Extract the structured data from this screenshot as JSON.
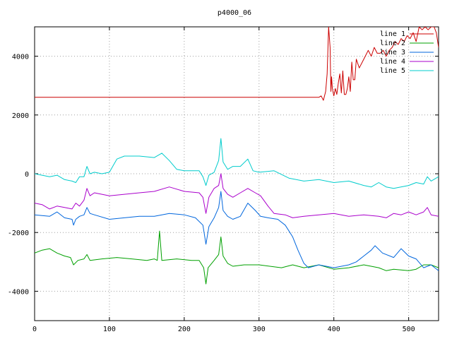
{
  "chart_data": {
    "type": "line",
    "title": "p4000_06",
    "xlabel": "",
    "ylabel": "",
    "xlim": [
      0,
      540
    ],
    "ylim": [
      -5000,
      5000
    ],
    "x_ticks": [
      0,
      100,
      200,
      300,
      400,
      500
    ],
    "y_ticks": [
      -4000,
      -2000,
      0,
      2000,
      4000
    ],
    "grid": true,
    "legend_position": "top-right",
    "series": [
      {
        "name": "line 1",
        "color": "#cc0000",
        "points": [
          [
            0,
            2600
          ],
          [
            100,
            2600
          ],
          [
            200,
            2600
          ],
          [
            300,
            2600
          ],
          [
            380,
            2600
          ],
          [
            383,
            2650
          ],
          [
            386,
            2500
          ],
          [
            389,
            2800
          ],
          [
            391,
            3400
          ],
          [
            393,
            5000
          ],
          [
            395,
            4300
          ],
          [
            396,
            2800
          ],
          [
            397,
            3300
          ],
          [
            398,
            2900
          ],
          [
            400,
            2650
          ],
          [
            402,
            2900
          ],
          [
            404,
            2700
          ],
          [
            406,
            3100
          ],
          [
            408,
            3400
          ],
          [
            410,
            2750
          ],
          [
            412,
            3500
          ],
          [
            414,
            2700
          ],
          [
            416,
            2700
          ],
          [
            418,
            2900
          ],
          [
            420,
            3300
          ],
          [
            422,
            2800
          ],
          [
            424,
            3800
          ],
          [
            426,
            3200
          ],
          [
            428,
            3200
          ],
          [
            430,
            3900
          ],
          [
            434,
            3600
          ],
          [
            438,
            3800
          ],
          [
            442,
            4000
          ],
          [
            446,
            4200
          ],
          [
            450,
            4000
          ],
          [
            454,
            4300
          ],
          [
            458,
            4100
          ],
          [
            462,
            4100
          ],
          [
            466,
            4200
          ],
          [
            470,
            4000
          ],
          [
            474,
            4200
          ],
          [
            478,
            4300
          ],
          [
            482,
            4500
          ],
          [
            486,
            4400
          ],
          [
            490,
            4600
          ],
          [
            494,
            4500
          ],
          [
            498,
            4700
          ],
          [
            502,
            4600
          ],
          [
            506,
            4800
          ],
          [
            510,
            4500
          ],
          [
            514,
            5000
          ],
          [
            518,
            4900
          ],
          [
            522,
            5000
          ],
          [
            526,
            4900
          ],
          [
            530,
            5000
          ],
          [
            534,
            5000
          ],
          [
            537,
            4800
          ],
          [
            540,
            4300
          ]
        ]
      },
      {
        "name": "line 2",
        "color": "#00a000",
        "points": [
          [
            0,
            -2700
          ],
          [
            10,
            -2600
          ],
          [
            20,
            -2550
          ],
          [
            30,
            -2700
          ],
          [
            40,
            -2800
          ],
          [
            48,
            -2850
          ],
          [
            52,
            -3100
          ],
          [
            58,
            -2950
          ],
          [
            66,
            -2900
          ],
          [
            70,
            -2750
          ],
          [
            74,
            -2950
          ],
          [
            90,
            -2900
          ],
          [
            110,
            -2850
          ],
          [
            130,
            -2900
          ],
          [
            150,
            -2950
          ],
          [
            160,
            -2900
          ],
          [
            164,
            -2950
          ],
          [
            167,
            -1950
          ],
          [
            170,
            -2950
          ],
          [
            190,
            -2900
          ],
          [
            210,
            -2950
          ],
          [
            220,
            -2950
          ],
          [
            226,
            -3200
          ],
          [
            229,
            -3750
          ],
          [
            232,
            -3200
          ],
          [
            240,
            -2950
          ],
          [
            246,
            -2750
          ],
          [
            249,
            -2150
          ],
          [
            252,
            -2800
          ],
          [
            258,
            -3050
          ],
          [
            265,
            -3150
          ],
          [
            280,
            -3100
          ],
          [
            300,
            -3100
          ],
          [
            330,
            -3200
          ],
          [
            345,
            -3100
          ],
          [
            360,
            -3200
          ],
          [
            380,
            -3100
          ],
          [
            400,
            -3250
          ],
          [
            420,
            -3200
          ],
          [
            440,
            -3100
          ],
          [
            460,
            -3200
          ],
          [
            470,
            -3300
          ],
          [
            480,
            -3250
          ],
          [
            500,
            -3300
          ],
          [
            510,
            -3250
          ],
          [
            520,
            -3100
          ],
          [
            530,
            -3100
          ],
          [
            540,
            -3200
          ]
        ]
      },
      {
        "name": "line 3",
        "color": "#0066dd",
        "points": [
          [
            0,
            -1400
          ],
          [
            20,
            -1450
          ],
          [
            30,
            -1300
          ],
          [
            40,
            -1500
          ],
          [
            50,
            -1550
          ],
          [
            52,
            -1750
          ],
          [
            55,
            -1550
          ],
          [
            60,
            -1450
          ],
          [
            66,
            -1400
          ],
          [
            70,
            -1150
          ],
          [
            74,
            -1350
          ],
          [
            80,
            -1400
          ],
          [
            100,
            -1550
          ],
          [
            120,
            -1500
          ],
          [
            140,
            -1450
          ],
          [
            160,
            -1450
          ],
          [
            180,
            -1350
          ],
          [
            200,
            -1400
          ],
          [
            215,
            -1500
          ],
          [
            225,
            -1750
          ],
          [
            229,
            -2400
          ],
          [
            233,
            -1800
          ],
          [
            240,
            -1500
          ],
          [
            246,
            -1150
          ],
          [
            249,
            -600
          ],
          [
            252,
            -1250
          ],
          [
            258,
            -1450
          ],
          [
            265,
            -1550
          ],
          [
            275,
            -1450
          ],
          [
            285,
            -1000
          ],
          [
            295,
            -1250
          ],
          [
            302,
            -1450
          ],
          [
            312,
            -1500
          ],
          [
            325,
            -1550
          ],
          [
            335,
            -1750
          ],
          [
            345,
            -2150
          ],
          [
            352,
            -2600
          ],
          [
            360,
            -3050
          ],
          [
            366,
            -3200
          ],
          [
            380,
            -3100
          ],
          [
            400,
            -3200
          ],
          [
            420,
            -3100
          ],
          [
            430,
            -3000
          ],
          [
            440,
            -2800
          ],
          [
            450,
            -2600
          ],
          [
            455,
            -2450
          ],
          [
            465,
            -2700
          ],
          [
            480,
            -2850
          ],
          [
            490,
            -2550
          ],
          [
            500,
            -2800
          ],
          [
            510,
            -2900
          ],
          [
            520,
            -3200
          ],
          [
            530,
            -3100
          ],
          [
            540,
            -3300
          ]
        ]
      },
      {
        "name": "line 4",
        "color": "#aa00cc",
        "points": [
          [
            0,
            -1000
          ],
          [
            10,
            -1050
          ],
          [
            20,
            -1200
          ],
          [
            30,
            -1100
          ],
          [
            40,
            -1150
          ],
          [
            50,
            -1200
          ],
          [
            55,
            -1000
          ],
          [
            60,
            -1100
          ],
          [
            66,
            -900
          ],
          [
            70,
            -500
          ],
          [
            74,
            -750
          ],
          [
            80,
            -650
          ],
          [
            100,
            -750
          ],
          [
            120,
            -700
          ],
          [
            140,
            -650
          ],
          [
            160,
            -600
          ],
          [
            180,
            -450
          ],
          [
            200,
            -600
          ],
          [
            220,
            -650
          ],
          [
            225,
            -800
          ],
          [
            229,
            -1350
          ],
          [
            233,
            -800
          ],
          [
            240,
            -500
          ],
          [
            246,
            -400
          ],
          [
            249,
            0
          ],
          [
            252,
            -500
          ],
          [
            258,
            -700
          ],
          [
            265,
            -800
          ],
          [
            275,
            -650
          ],
          [
            285,
            -500
          ],
          [
            295,
            -650
          ],
          [
            302,
            -750
          ],
          [
            312,
            -1100
          ],
          [
            320,
            -1350
          ],
          [
            335,
            -1400
          ],
          [
            345,
            -1500
          ],
          [
            360,
            -1450
          ],
          [
            380,
            -1400
          ],
          [
            400,
            -1350
          ],
          [
            420,
            -1450
          ],
          [
            440,
            -1400
          ],
          [
            460,
            -1450
          ],
          [
            470,
            -1500
          ],
          [
            480,
            -1350
          ],
          [
            490,
            -1400
          ],
          [
            500,
            -1300
          ],
          [
            510,
            -1400
          ],
          [
            520,
            -1300
          ],
          [
            525,
            -1150
          ],
          [
            530,
            -1400
          ],
          [
            540,
            -1450
          ]
        ]
      },
      {
        "name": "line 5",
        "color": "#00cccc",
        "points": [
          [
            0,
            0
          ],
          [
            10,
            -50
          ],
          [
            20,
            -100
          ],
          [
            30,
            -50
          ],
          [
            40,
            -200
          ],
          [
            50,
            -250
          ],
          [
            55,
            -300
          ],
          [
            60,
            -100
          ],
          [
            66,
            -100
          ],
          [
            70,
            250
          ],
          [
            74,
            0
          ],
          [
            80,
            50
          ],
          [
            90,
            0
          ],
          [
            100,
            50
          ],
          [
            110,
            500
          ],
          [
            120,
            600
          ],
          [
            140,
            600
          ],
          [
            160,
            550
          ],
          [
            170,
            700
          ],
          [
            180,
            450
          ],
          [
            190,
            150
          ],
          [
            200,
            100
          ],
          [
            220,
            100
          ],
          [
            225,
            -100
          ],
          [
            229,
            -400
          ],
          [
            233,
            -50
          ],
          [
            240,
            50
          ],
          [
            246,
            450
          ],
          [
            249,
            1200
          ],
          [
            252,
            400
          ],
          [
            258,
            150
          ],
          [
            265,
            250
          ],
          [
            275,
            250
          ],
          [
            285,
            500
          ],
          [
            292,
            100
          ],
          [
            300,
            50
          ],
          [
            320,
            100
          ],
          [
            340,
            -150
          ],
          [
            360,
            -250
          ],
          [
            380,
            -200
          ],
          [
            400,
            -300
          ],
          [
            420,
            -250
          ],
          [
            440,
            -400
          ],
          [
            450,
            -450
          ],
          [
            460,
            -300
          ],
          [
            470,
            -450
          ],
          [
            480,
            -500
          ],
          [
            500,
            -400
          ],
          [
            510,
            -300
          ],
          [
            520,
            -350
          ],
          [
            525,
            -100
          ],
          [
            530,
            -250
          ],
          [
            540,
            -100
          ]
        ]
      }
    ]
  }
}
